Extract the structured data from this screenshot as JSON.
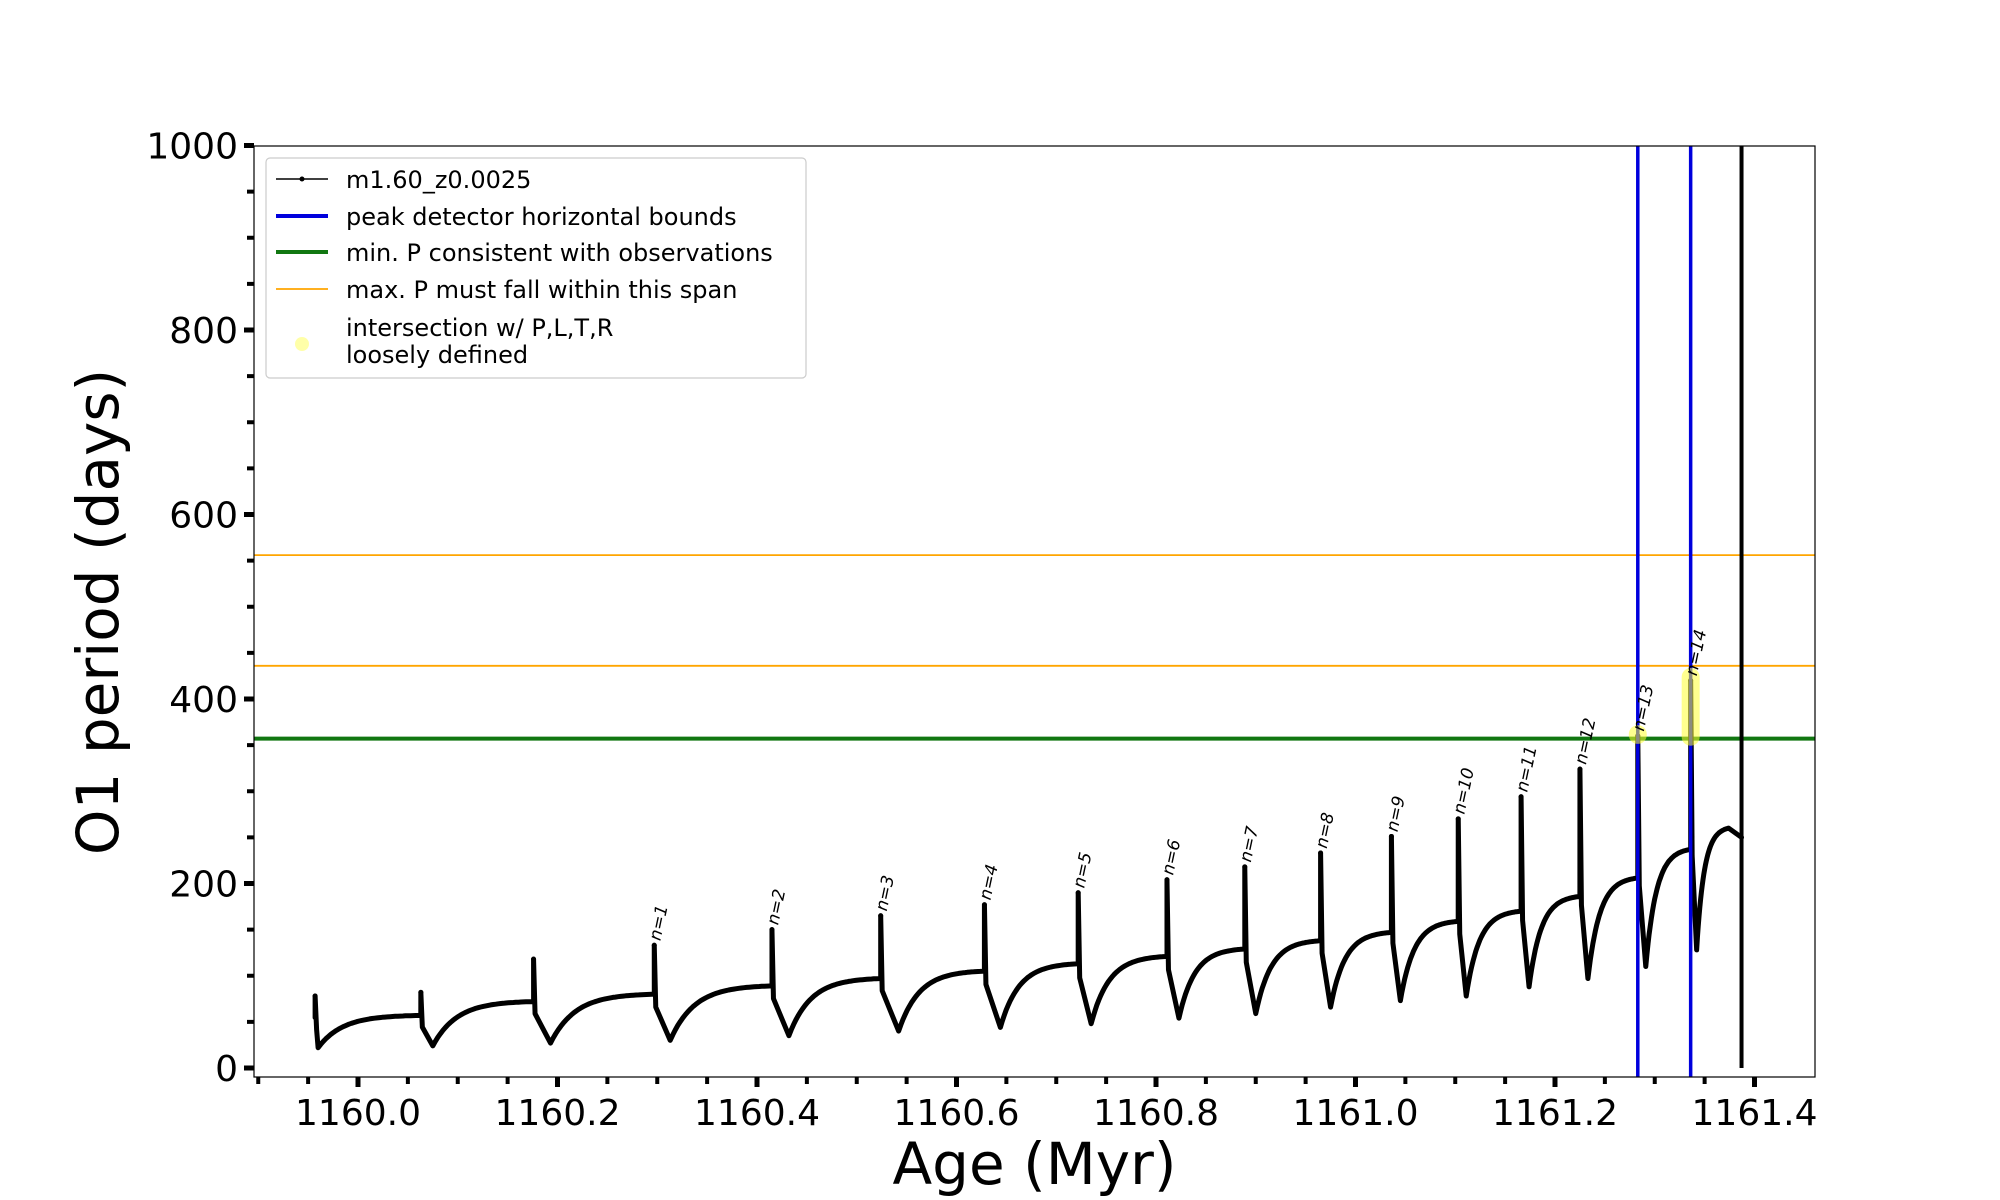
{
  "chart_data": {
    "type": "line",
    "title": "",
    "xlabel": "Age (Myr)",
    "ylabel": "O1 period (days)",
    "xlim": [
      1159.9,
      1161.41
    ],
    "ylim": [
      0,
      1000
    ],
    "xticks": [
      "1160.0",
      "1160.2",
      "1160.4",
      "1160.6",
      "1160.8",
      "1161.0",
      "1161.2",
      "1161.4"
    ],
    "yticks": [
      "0",
      "200",
      "400",
      "600",
      "800",
      "1000"
    ],
    "grid": false,
    "legend_position": "top-left",
    "legend": [
      {
        "label": "m1.60_z0.0025",
        "color": "#000000",
        "style": "line-dot"
      },
      {
        "label": "peak detector horizontal bounds",
        "color": "#0000dd",
        "style": "line"
      },
      {
        "label": "min. P consistent with observations",
        "color": "#117711",
        "style": "line"
      },
      {
        "label": "max. P must fall within this span",
        "color": "#ffa500",
        "style": "thin-line"
      },
      {
        "label": "intersection w/ P,L,T,R",
        "label2": "loosely defined",
        "color": "#ffff99",
        "style": "marker"
      }
    ],
    "series": [
      {
        "name": "m1.60_z0.0025",
        "color": "#000000",
        "cycles": [
          {
            "start": 1159.957,
            "low": 1159.96,
            "peak": 78,
            "min": 22,
            "end": 1160.063,
            "end_value": 57,
            "label": ""
          },
          {
            "start": 1160.063,
            "low": 1160.075,
            "peak": 82,
            "min": 24,
            "end": 1160.176,
            "end_value": 72,
            "label": ""
          },
          {
            "start": 1160.176,
            "low": 1160.193,
            "peak": 118,
            "min": 27,
            "end": 1160.297,
            "end_value": 80,
            "label": ""
          },
          {
            "start": 1160.297,
            "low": 1160.313,
            "peak": 133,
            "min": 30,
            "end": 1160.415,
            "end_value": 89,
            "label": "n=1"
          },
          {
            "start": 1160.415,
            "low": 1160.432,
            "peak": 150,
            "min": 35,
            "end": 1160.524,
            "end_value": 97,
            "label": "n=2"
          },
          {
            "start": 1160.524,
            "low": 1160.542,
            "peak": 165,
            "min": 40,
            "end": 1160.628,
            "end_value": 105,
            "label": "n=3"
          },
          {
            "start": 1160.628,
            "low": 1160.644,
            "peak": 177,
            "min": 44,
            "end": 1160.722,
            "end_value": 113,
            "label": "n=4"
          },
          {
            "start": 1160.722,
            "low": 1160.735,
            "peak": 190,
            "min": 48,
            "end": 1160.811,
            "end_value": 121,
            "label": "n=5"
          },
          {
            "start": 1160.811,
            "low": 1160.823,
            "peak": 204,
            "min": 54,
            "end": 1160.889,
            "end_value": 129,
            "label": "n=6"
          },
          {
            "start": 1160.889,
            "low": 1160.9,
            "peak": 218,
            "min": 59,
            "end": 1160.965,
            "end_value": 138,
            "label": "n=7"
          },
          {
            "start": 1160.965,
            "low": 1160.975,
            "peak": 233,
            "min": 66,
            "end": 1161.036,
            "end_value": 147,
            "label": "n=8"
          },
          {
            "start": 1161.036,
            "low": 1161.045,
            "peak": 251,
            "min": 73,
            "end": 1161.103,
            "end_value": 159,
            "label": "n=9"
          },
          {
            "start": 1161.103,
            "low": 1161.111,
            "peak": 270,
            "min": 78,
            "end": 1161.166,
            "end_value": 170,
            "label": "n=10"
          },
          {
            "start": 1161.166,
            "low": 1161.174,
            "peak": 294,
            "min": 88,
            "end": 1161.225,
            "end_value": 186,
            "label": "n=11"
          },
          {
            "start": 1161.225,
            "low": 1161.233,
            "peak": 324,
            "min": 97,
            "end": 1161.283,
            "end_value": 206,
            "label": "n=12"
          },
          {
            "start": 1161.283,
            "low": 1161.291,
            "peak": 360,
            "min": 110,
            "end": 1161.336,
            "end_value": 237,
            "label": "n=13"
          },
          {
            "start": 1161.336,
            "low": 1161.342,
            "peak": 420,
            "min": 128,
            "end": 1161.374,
            "end_value": 260,
            "label": "n=14"
          }
        ],
        "final_spike": {
          "x": 1161.387,
          "top": 1000,
          "bottom": 0
        }
      }
    ],
    "vertical_lines": [
      {
        "x": 1161.283,
        "color": "#0000dd"
      },
      {
        "x": 1161.336,
        "color": "#0000dd"
      }
    ],
    "horizontal_lines": [
      {
        "y": 357,
        "color": "#117711",
        "kind": "min-p"
      },
      {
        "y": 556,
        "color": "#ffa500",
        "kind": "max-p-upper"
      },
      {
        "y": 436,
        "color": "#ffa500",
        "kind": "max-p-lower"
      }
    ],
    "intersections": [
      {
        "x": 1161.283,
        "y_from": 360,
        "y_to": 363
      },
      {
        "x": 1161.336,
        "y_from": 358,
        "y_to": 425
      }
    ]
  }
}
